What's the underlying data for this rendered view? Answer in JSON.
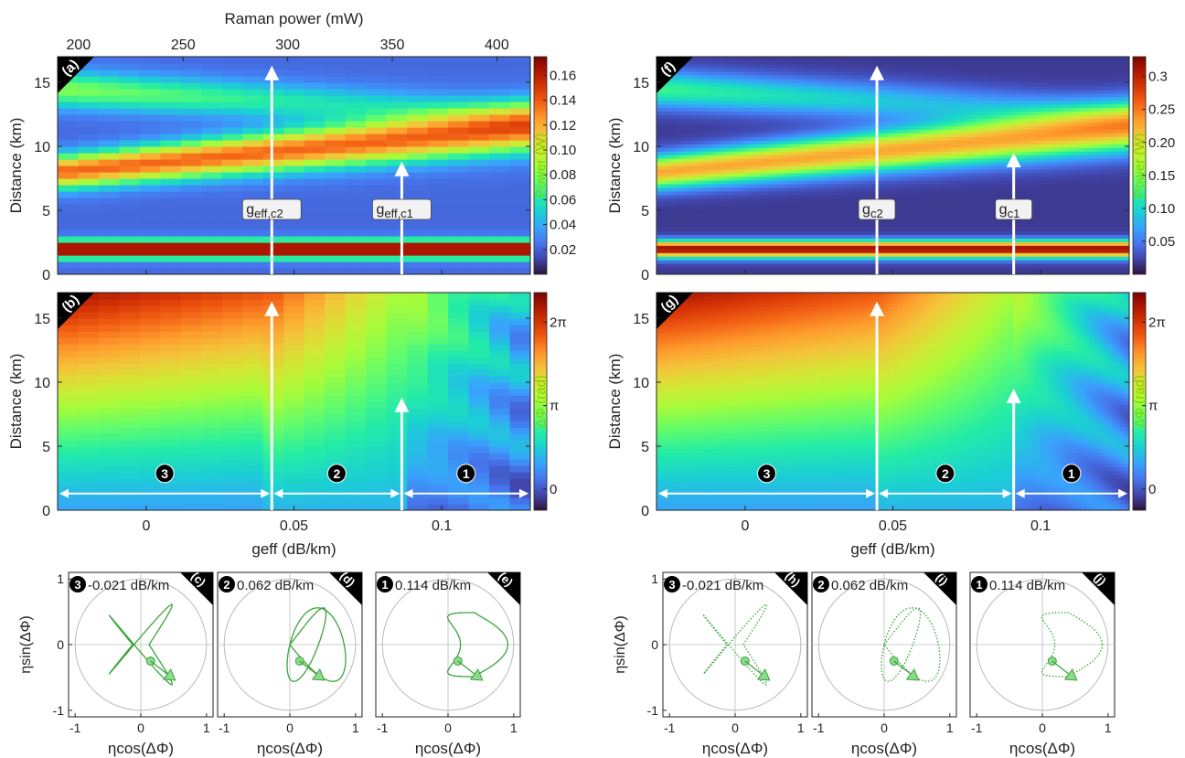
{
  "colors": {
    "turbo": [
      "#30123b",
      "#4145ab",
      "#4675ed",
      "#39a2fc",
      "#1bcfd4",
      "#24eca6",
      "#61fc6c",
      "#a4fc3b",
      "#d1e834",
      "#f3c63a",
      "#fe9b2d",
      "#f36315",
      "#d93806",
      "#b11901",
      "#7a0402"
    ],
    "trajectory_green": "#3aa53a",
    "marker_fill": "#8fd88f",
    "white": "#ffffff",
    "unit_circle": "#bbbbbb"
  },
  "chart_data": [
    {
      "id": "a",
      "type": "heatmap",
      "panel_label": "(a)",
      "xlabel_top": "Raman power (mW)",
      "x_top_ticks": [
        "200",
        "250",
        "300",
        "350",
        "400"
      ],
      "x_top_values": [
        200,
        250,
        300,
        350,
        400
      ],
      "x_top_range": [
        190,
        416
      ],
      "ylabel": "Distance (km)",
      "yticks": [
        "0",
        "5",
        "10",
        "15"
      ],
      "ylim": [
        0,
        17
      ],
      "xlim": [
        -0.03,
        0.13
      ],
      "n_columns": 23,
      "colorbar_label": "Power (W)",
      "colorbar_ticks": [
        "0.02",
        "0.04",
        "0.06",
        "0.08",
        "0.10",
        "0.12",
        "0.14",
        "0.16"
      ],
      "colorbar_values": [
        0.02,
        0.04,
        0.06,
        0.08,
        0.1,
        0.12,
        0.14,
        0.16
      ],
      "colorbar_range": [
        0.0,
        0.175
      ],
      "arrows": [
        {
          "x": 0.0425,
          "y0": 0,
          "y1": 16.3,
          "label": "g",
          "sub": "eff,c2",
          "label_y": 5.0
        },
        {
          "x": 0.0865,
          "y0": 0,
          "y1": 8.8,
          "label": "g",
          "sub": "eff,c1",
          "label_y": 5.0
        }
      ]
    },
    {
      "id": "b",
      "type": "heatmap",
      "panel_label": "(b)",
      "ylabel": "Distance (km)",
      "yticks": [
        "0",
        "5",
        "10",
        "15"
      ],
      "xlabel": "geff (dB/km)",
      "xticks": [
        "0",
        "0.05",
        "0.1"
      ],
      "xtick_values": [
        0,
        0.05,
        0.1
      ],
      "xlim": [
        -0.03,
        0.13
      ],
      "ylim": [
        0,
        17
      ],
      "n_columns": 23,
      "colorbar_label": "ΔΦ (rad)",
      "colorbar_ticks": [
        "0",
        "π",
        "2π"
      ],
      "colorbar_values": [
        0,
        3.1416,
        6.2832
      ],
      "colorbar_range": [
        -0.8,
        7.4
      ],
      "arrows": [
        {
          "x": 0.0425,
          "y0": 0,
          "y1": 16.3
        },
        {
          "x": 0.0865,
          "y0": 0,
          "y1": 8.8
        }
      ],
      "regions": [
        {
          "label": "3",
          "x0": -0.03,
          "x1": 0.0425,
          "y": 1.3
        },
        {
          "label": "2",
          "x0": 0.0425,
          "x1": 0.0865,
          "y": 1.3
        },
        {
          "label": "1",
          "x0": 0.0865,
          "x1": 0.13,
          "y": 1.3
        }
      ]
    },
    {
      "id": "f",
      "type": "heatmap",
      "panel_label": "(f)",
      "ylabel": "Distance (km)",
      "yticks": [
        "0",
        "5",
        "10",
        "15"
      ],
      "xlim": [
        -0.03,
        0.13
      ],
      "ylim": [
        0,
        17
      ],
      "colorbar_label": "Power (W)",
      "colorbar_ticks": [
        "0.05",
        "0.10",
        "0.15",
        "0.20",
        "0.25",
        "0.3"
      ],
      "colorbar_values": [
        0.05,
        0.1,
        0.15,
        0.2,
        0.25,
        0.3
      ],
      "colorbar_range": [
        0.0,
        0.33
      ],
      "arrows": [
        {
          "x": 0.0446,
          "y0": 0,
          "y1": 16.3,
          "label": "g",
          "sub": "c2",
          "label_y": 5.0
        },
        {
          "x": 0.0909,
          "y0": 0,
          "y1": 9.5,
          "label": "g",
          "sub": "c1",
          "label_y": 5.0
        }
      ]
    },
    {
      "id": "g",
      "type": "heatmap",
      "panel_label": "(g)",
      "ylabel": "Distance (km)",
      "yticks": [
        "0",
        "5",
        "10",
        "15"
      ],
      "xlabel": "geff (dB/km)",
      "xticks": [
        "0",
        "0.05",
        "0.1"
      ],
      "xtick_values": [
        0,
        0.05,
        0.1
      ],
      "xlim": [
        -0.03,
        0.13
      ],
      "ylim": [
        0,
        17
      ],
      "colorbar_label": "ΔΦ (rad)",
      "colorbar_ticks": [
        "0",
        "π",
        "2π"
      ],
      "colorbar_values": [
        0,
        3.1416,
        6.2832
      ],
      "colorbar_range": [
        -0.8,
        7.4
      ],
      "arrows": [
        {
          "x": 0.0446,
          "y0": 0,
          "y1": 16.3
        },
        {
          "x": 0.0909,
          "y0": 0,
          "y1": 9.5
        }
      ],
      "regions": [
        {
          "label": "3",
          "x0": -0.03,
          "x1": 0.0446,
          "y": 1.3
        },
        {
          "label": "2",
          "x0": 0.0446,
          "x1": 0.0909,
          "y": 1.3
        },
        {
          "label": "1",
          "x0": 0.0909,
          "x1": 0.13,
          "y": 1.3
        }
      ]
    },
    {
      "id": "c",
      "type": "line",
      "panel_label": "(c)",
      "region": "3",
      "title": "-0.021 dB/km",
      "geff": -0.021,
      "style": "solid",
      "ylabel": "ηsin(ΔΦ)",
      "xlabel": "ηcos(ΔΦ)",
      "ticks": [
        "-1",
        "0",
        "1"
      ],
      "xlim": [
        -1.1,
        1.1
      ],
      "ylim": [
        -1.1,
        1.1
      ]
    },
    {
      "id": "d",
      "type": "line",
      "panel_label": "(d)",
      "region": "2",
      "title": "0.062 dB/km",
      "geff": 0.062,
      "style": "solid",
      "xlabel": "ηcos(ΔΦ)",
      "ticks": [
        "-1",
        "0",
        "1"
      ],
      "xlim": [
        -1.1,
        1.1
      ],
      "ylim": [
        -1.1,
        1.1
      ]
    },
    {
      "id": "e",
      "type": "line",
      "panel_label": "(e)",
      "region": "1",
      "title": "0.114 dB/km",
      "geff": 0.114,
      "style": "solid",
      "xlabel": "ηcos(ΔΦ)",
      "ticks": [
        "-1",
        "0",
        "1"
      ],
      "xlim": [
        -1.1,
        1.1
      ],
      "ylim": [
        -1.1,
        1.1
      ]
    },
    {
      "id": "h",
      "type": "line",
      "panel_label": "(h)",
      "region": "3",
      "title": "-0.021 dB/km",
      "geff": -0.021,
      "style": "dotted",
      "ylabel": "ηsin(ΔΦ)",
      "xlabel": "ηcos(ΔΦ)",
      "ticks": [
        "-1",
        "0",
        "1"
      ],
      "xlim": [
        -1.1,
        1.1
      ],
      "ylim": [
        -1.1,
        1.1
      ]
    },
    {
      "id": "i",
      "type": "line",
      "panel_label": "(i)",
      "region": "2",
      "title": "0.062 dB/km",
      "geff": 0.062,
      "style": "dotted",
      "xlabel": "ηcos(ΔΦ)",
      "ticks": [
        "-1",
        "0",
        "1"
      ],
      "xlim": [
        -1.1,
        1.1
      ],
      "ylim": [
        -1.1,
        1.1
      ]
    },
    {
      "id": "j",
      "type": "line",
      "panel_label": "(j)",
      "region": "1",
      "title": "0.114 dB/km",
      "geff": 0.114,
      "style": "dotted",
      "xlabel": "ηcos(ΔΦ)",
      "ticks": [
        "-1",
        "0",
        "1"
      ],
      "xlim": [
        -1.1,
        1.1
      ],
      "ylim": [
        -1.1,
        1.1
      ]
    }
  ]
}
